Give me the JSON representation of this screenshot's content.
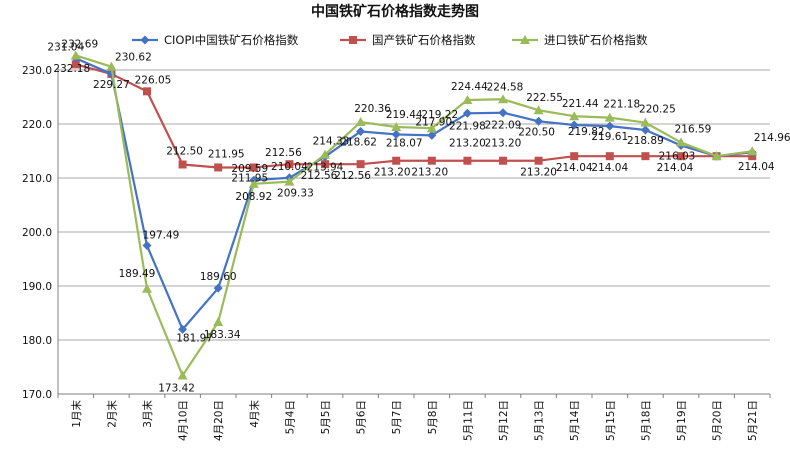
{
  "chart_data": {
    "type": "line",
    "title": "中国铁矿石价格指数走势图",
    "xlabel": "",
    "ylabel": "",
    "categories": [
      "1月末",
      "2月末",
      "3月末",
      "4月10日",
      "4月20日",
      "4月末",
      "5月4日",
      "5月5日",
      "5月6日",
      "5月7日",
      "5月8日",
      "5月11日",
      "5月12日",
      "5月13日",
      "5月14日",
      "5月15日",
      "5月18日",
      "5月19日",
      "5月20日",
      "5月21日"
    ],
    "ylim": [
      170,
      230
    ],
    "yticks": [
      "170.0",
      "180.0",
      "190.0",
      "200.0",
      "210.0",
      "220.0",
      "230.0"
    ],
    "legend_position": "top",
    "grid": "horizontal",
    "series": [
      {
        "name": "CIOPI中国铁矿石价格指数",
        "color": "#4472C4",
        "marker": "diamond",
        "values": [
          232.18,
          229.27,
          197.49,
          181.97,
          189.6,
          209.59,
          210.04,
          213.94,
          218.62,
          218.07,
          217.9,
          221.98,
          222.09,
          220.5,
          219.82,
          219.61,
          218.89,
          216.03,
          214.04,
          214.76
        ],
        "labels": [
          "232.18",
          "229.27",
          "197.49",
          "181.97",
          "189.60",
          "209.59",
          "210.04",
          "213.94",
          "218.62",
          "218.07",
          "217.90",
          "221.98",
          "222.09",
          "220.50",
          "219.82",
          "219.61",
          "218.89",
          "216.03",
          "",
          ""
        ]
      },
      {
        "name": "国产铁矿石价格指数",
        "color": "#C0504D",
        "marker": "square",
        "values": [
          231.04,
          229.27,
          226.05,
          212.5,
          211.95,
          211.95,
          212.56,
          212.56,
          212.56,
          213.2,
          213.2,
          213.2,
          213.2,
          213.2,
          214.04,
          214.04,
          214.04,
          214.04,
          214.04,
          214.04
        ],
        "labels": [
          "231.04",
          "",
          "226.05",
          "212.50",
          "211.95",
          "211.95",
          "212.56",
          "212.56",
          "212.56",
          "213.20",
          "213.20",
          "213.20",
          "213.20",
          "213.20",
          "214.04",
          "214.04",
          "",
          "214.04",
          "",
          "214.04"
        ]
      },
      {
        "name": "进口铁矿石价格指数",
        "color": "#9BBB59",
        "marker": "triangle",
        "values": [
          232.69,
          230.62,
          189.49,
          173.42,
          183.34,
          208.92,
          209.33,
          214.33,
          220.36,
          219.44,
          219.22,
          224.44,
          224.58,
          222.55,
          221.44,
          221.18,
          220.25,
          216.59,
          214.04,
          214.96
        ],
        "labels": [
          "232.69",
          "230.62",
          "189.49",
          "173.42",
          "183.34",
          "208.92",
          "209.33",
          "214.33",
          "220.36",
          "219.44",
          "219.22",
          "224.44",
          "224.58",
          "222.55",
          "221.44",
          "221.18",
          "220.25",
          "216.59",
          "",
          "214.96"
        ]
      }
    ]
  }
}
